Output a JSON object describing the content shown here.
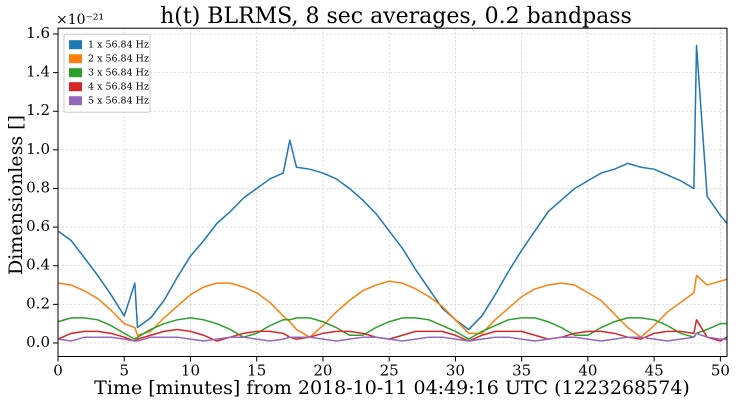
{
  "chart_data": {
    "type": "line",
    "title": "h(t) BLRMS, 8 sec averages, 0.2 bandpass",
    "x_label": "Time [minutes] from 2018-10-11 04:49:16 UTC (1223268574)",
    "y_label": "Dimensionless []",
    "y_offset_label": "×10⁻²¹",
    "grid": true,
    "legend": "upper left",
    "xlim": [
      0,
      50.5
    ],
    "ylim": [
      -0.07,
      1.63
    ],
    "xticks": [
      0,
      5,
      10,
      15,
      20,
      25,
      30,
      35,
      40,
      45,
      50
    ],
    "yticks": [
      {
        "value": 0,
        "label": "0.0"
      },
      0.2,
      0.4,
      0.6,
      0.8,
      {
        "value": 1,
        "label": "1.0"
      },
      1.2,
      1.4,
      1.6
    ],
    "x": [
      0,
      1,
      2,
      3,
      4,
      5,
      5.8,
      6,
      7,
      8,
      9,
      10,
      11,
      12,
      13,
      14,
      15,
      16,
      17,
      17.5,
      18,
      19,
      20,
      21,
      22,
      23,
      24,
      25,
      26,
      27,
      28,
      29,
      30,
      31,
      32,
      33,
      34,
      35,
      36,
      37,
      38,
      39,
      40,
      41,
      42,
      43,
      44,
      45,
      46,
      47,
      48,
      48.2,
      49,
      50,
      50.5
    ],
    "series": [
      {
        "name": "1 x 56.84 Hz",
        "color": "#1f77b4",
        "values": [
          0.58,
          0.53,
          0.44,
          0.35,
          0.25,
          0.14,
          0.31,
          0.08,
          0.13,
          0.22,
          0.34,
          0.45,
          0.53,
          0.62,
          0.68,
          0.75,
          0.8,
          0.85,
          0.88,
          1.05,
          0.91,
          0.9,
          0.88,
          0.85,
          0.8,
          0.74,
          0.67,
          0.58,
          0.49,
          0.38,
          0.28,
          0.18,
          0.12,
          0.07,
          0.14,
          0.25,
          0.37,
          0.48,
          0.58,
          0.68,
          0.74,
          0.8,
          0.84,
          0.88,
          0.9,
          0.93,
          0.91,
          0.9,
          0.87,
          0.84,
          0.8,
          1.54,
          0.76,
          0.66,
          0.62
        ]
      },
      {
        "name": "2 x 56.84 Hz",
        "color": "#ff7f0e",
        "values": [
          0.31,
          0.3,
          0.27,
          0.23,
          0.17,
          0.1,
          0.08,
          0.04,
          0.06,
          0.13,
          0.19,
          0.25,
          0.29,
          0.31,
          0.31,
          0.29,
          0.26,
          0.21,
          0.14,
          0.11,
          0.07,
          0.03,
          0.09,
          0.16,
          0.22,
          0.27,
          0.3,
          0.32,
          0.31,
          0.28,
          0.24,
          0.19,
          0.12,
          0.05,
          0.05,
          0.12,
          0.18,
          0.24,
          0.28,
          0.3,
          0.31,
          0.3,
          0.26,
          0.22,
          0.15,
          0.08,
          0.03,
          0.09,
          0.16,
          0.21,
          0.26,
          0.35,
          0.3,
          0.32,
          0.33
        ]
      },
      {
        "name": "3 x 56.84 Hz",
        "color": "#2ca02c",
        "values": [
          0.11,
          0.13,
          0.13,
          0.12,
          0.09,
          0.05,
          0.02,
          0.03,
          0.07,
          0.1,
          0.12,
          0.13,
          0.12,
          0.1,
          0.07,
          0.03,
          0.05,
          0.09,
          0.12,
          0.12,
          0.13,
          0.13,
          0.11,
          0.08,
          0.04,
          0.04,
          0.08,
          0.11,
          0.13,
          0.13,
          0.12,
          0.09,
          0.06,
          0.02,
          0.06,
          0.09,
          0.12,
          0.13,
          0.13,
          0.11,
          0.08,
          0.04,
          0.04,
          0.08,
          0.11,
          0.13,
          0.13,
          0.12,
          0.09,
          0.05,
          0.03,
          0.05,
          0.07,
          0.1,
          0.1
        ]
      },
      {
        "name": "4 x 56.84 Hz",
        "color": "#d62728",
        "values": [
          0.02,
          0.05,
          0.06,
          0.06,
          0.05,
          0.03,
          0.01,
          0.02,
          0.04,
          0.06,
          0.07,
          0.06,
          0.04,
          0.01,
          0.03,
          0.05,
          0.06,
          0.06,
          0.05,
          0.03,
          0.02,
          0.03,
          0.05,
          0.06,
          0.06,
          0.05,
          0.03,
          0.02,
          0.04,
          0.06,
          0.06,
          0.06,
          0.04,
          0.01,
          0.04,
          0.06,
          0.06,
          0.06,
          0.04,
          0.02,
          0.03,
          0.05,
          0.06,
          0.06,
          0.05,
          0.03,
          0.02,
          0.05,
          0.06,
          0.06,
          0.05,
          0.12,
          0.03,
          0.01,
          0.03
        ]
      },
      {
        "name": "5 x 56.84 Hz",
        "color": "#9467bd",
        "values": [
          0.02,
          0.01,
          0.03,
          0.03,
          0.03,
          0.02,
          0.01,
          0.01,
          0.03,
          0.03,
          0.03,
          0.02,
          0.01,
          0.02,
          0.03,
          0.03,
          0.02,
          0.01,
          0.02,
          0.03,
          0.03,
          0.03,
          0.02,
          0.01,
          0.02,
          0.03,
          0.03,
          0.02,
          0.01,
          0.02,
          0.03,
          0.03,
          0.02,
          0.01,
          0.02,
          0.03,
          0.03,
          0.02,
          0.01,
          0.02,
          0.03,
          0.03,
          0.02,
          0.01,
          0.02,
          0.03,
          0.03,
          0.02,
          0.01,
          0.02,
          0.03,
          0.05,
          0.03,
          0.02,
          0.02
        ]
      }
    ]
  }
}
